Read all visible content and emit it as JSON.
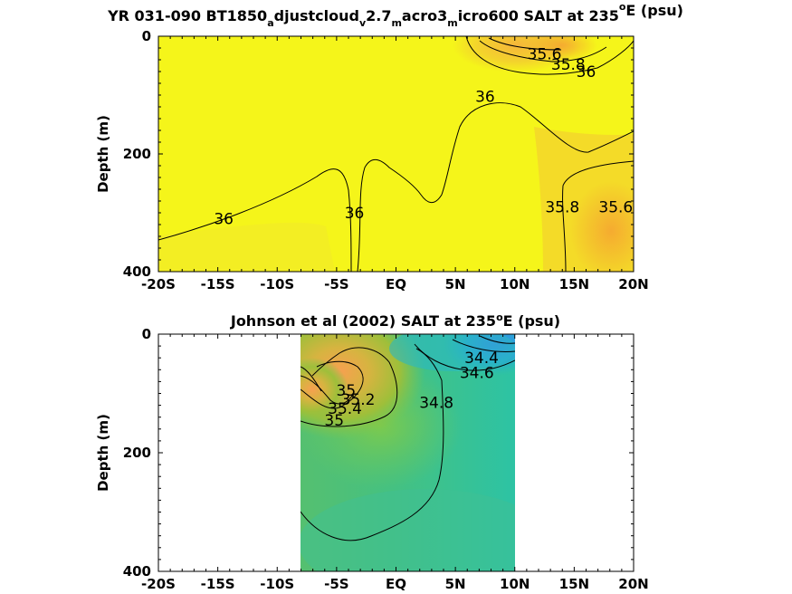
{
  "chart_data": [
    {
      "type": "heatmap",
      "title_parts": [
        "YR 031-090 BT1850",
        "a",
        "djustcloud",
        "v",
        "2.7",
        "m",
        "acro3",
        "m",
        "icro600 SALT at 235",
        "o",
        "E (psu)"
      ],
      "ylabel": "Depth (m)",
      "xlabel": "",
      "x_tick_labels": [
        "-20S",
        "-15S",
        "-10S",
        "-5S",
        "EQ",
        "5N",
        "10N",
        "15N",
        "20N"
      ],
      "x_ticks": [
        -20,
        -15,
        -10,
        -5,
        0,
        5,
        10,
        15,
        20
      ],
      "y_tick_labels": [
        "0",
        "200",
        "400"
      ],
      "y_ticks": [
        0,
        200,
        400
      ],
      "xlim": [
        -20,
        20
      ],
      "ylim": [
        0,
        400
      ],
      "data_extent": {
        "lat": [
          -20,
          20
        ],
        "depth": [
          0,
          400
        ]
      },
      "contour_labels": [
        {
          "text": "35.6",
          "lat": 12.5,
          "depth": 30
        },
        {
          "text": "35.8",
          "lat": 14.5,
          "depth": 48
        },
        {
          "text": "36",
          "lat": 16.0,
          "depth": 60
        },
        {
          "text": "36",
          "lat": 7.5,
          "depth": 102
        },
        {
          "text": "36",
          "lat": -14.5,
          "depth": 310
        },
        {
          "text": "36",
          "lat": -3.5,
          "depth": 300
        },
        {
          "text": "35.8",
          "lat": 14.0,
          "depth": 290
        },
        {
          "text": "35.6",
          "lat": 18.5,
          "depth": 290
        }
      ],
      "colors": {
        "background": "#f5f51a",
        "high": "#f7bc36",
        "mid": "#f3dd2c"
      }
    },
    {
      "type": "heatmap",
      "title_parts": [
        "Johnson et al (2002) SALT at 235",
        "o",
        "E (psu)"
      ],
      "ylabel": "Depth (m)",
      "xlabel": "",
      "x_tick_labels": [
        "-20S",
        "-15S",
        "-10S",
        "-5S",
        "EQ",
        "5N",
        "10N",
        "15N",
        "20N"
      ],
      "x_ticks": [
        -20,
        -15,
        -10,
        -5,
        0,
        5,
        10,
        15,
        20
      ],
      "y_tick_labels": [
        "0",
        "200",
        "400"
      ],
      "y_ticks": [
        0,
        200,
        400
      ],
      "xlim": [
        -20,
        20
      ],
      "ylim": [
        0,
        400
      ],
      "data_extent": {
        "lat": [
          -8,
          10
        ],
        "depth": [
          0,
          400
        ]
      },
      "contour_labels": [
        {
          "text": "34.4",
          "lat": 7.2,
          "depth": 40
        },
        {
          "text": "34.6",
          "lat": 6.8,
          "depth": 65
        },
        {
          "text": "34.8",
          "lat": 3.4,
          "depth": 115
        },
        {
          "text": "35",
          "lat": -4.2,
          "depth": 95
        },
        {
          "text": "35.2",
          "lat": -3.2,
          "depth": 110
        },
        {
          "text": "35.4",
          "lat": -4.3,
          "depth": 125
        },
        {
          "text": "35",
          "lat": -5.2,
          "depth": 145
        }
      ],
      "colors": {
        "low": "#3d8ff0",
        "mid": "#2fc0a0",
        "green": "#6cc85a",
        "high": "#f6a84a"
      }
    }
  ]
}
